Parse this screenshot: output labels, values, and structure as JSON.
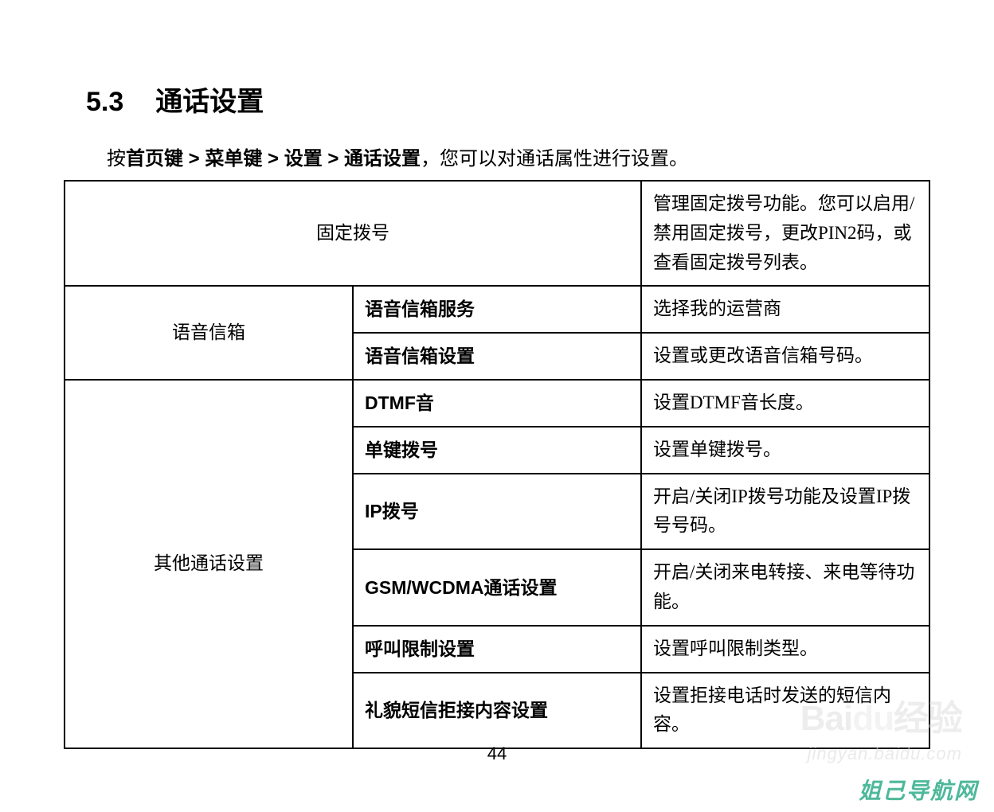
{
  "section": {
    "number": "5.3",
    "title": "通话设置"
  },
  "intro": {
    "prefix": "按",
    "path": "首页键 > 菜单键 > 设置 > 通话设置",
    "suffix": "，您可以对通话属性进行设置。"
  },
  "table": {
    "row1": {
      "left": "固定拨号",
      "desc": "管理固定拨号功能。您可以启用/禁用固定拨号，更改PIN2码，或查看固定拨号列表。"
    },
    "voicemail": {
      "category": "语音信箱",
      "r1_label": "语音信箱服务",
      "r1_desc": "选择我的运营商",
      "r2_label": "语音信箱设置",
      "r2_desc": "设置或更改语音信箱号码。"
    },
    "other": {
      "category": "其他通话设置",
      "r1_label": "DTMF音",
      "r1_desc": "设置DTMF音长度。",
      "r2_label": "单键拨号",
      "r2_desc": "设置单键拨号。",
      "r3_label": "IP拨号",
      "r3_desc": "开启/关闭IP拨号功能及设置IP拨号号码。",
      "r4_label": "GSM/WCDMA通话设置",
      "r4_desc": "开启/关闭来电转接、来电等待功能。",
      "r5_label": "呼叫限制设置",
      "r5_desc": "设置呼叫限制类型。",
      "r6_label": "礼貌短信拒接内容设置",
      "r6_desc": "设置拒接电话时发送的短信内容。"
    }
  },
  "page_number": "44",
  "watermark": {
    "logo_prefix": "Bai",
    "logo_suffix": "经验",
    "url": "jingyan.baidu.com"
  },
  "brand": "姐己导航网"
}
